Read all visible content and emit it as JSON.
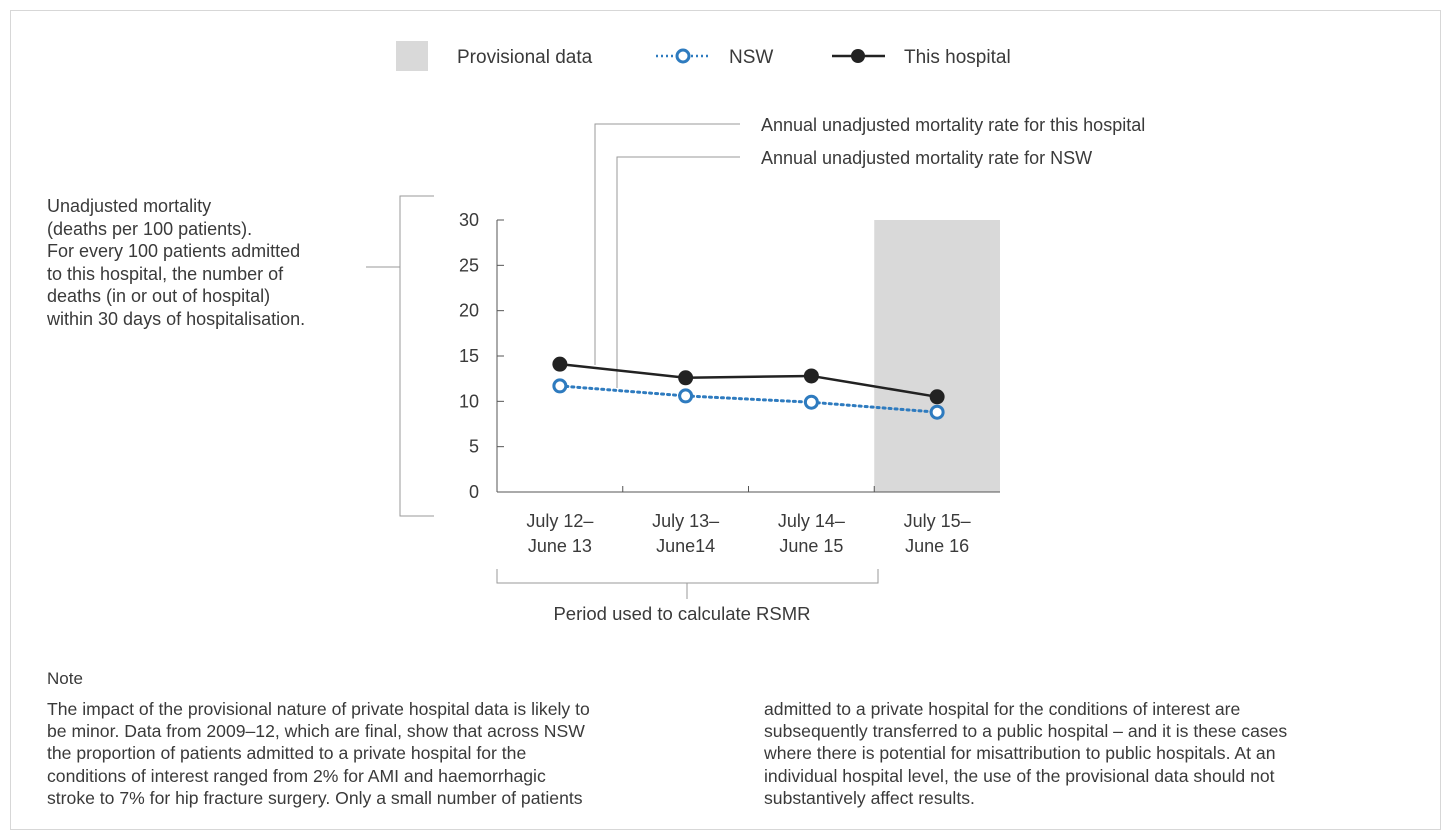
{
  "legend": {
    "provisional_label": "Provisional data",
    "nsw_label": "NSW",
    "hospital_label": "This hospital"
  },
  "annotations": {
    "hospital_rate": "Annual unadjusted mortality rate for this hospital",
    "nsw_rate": "Annual unadjusted mortality rate for NSW",
    "period": "Period used to calculate RSMR"
  },
  "y_axis_description": [
    "Unadjusted mortality",
    "(deaths per 100 patients).",
    "For every 100 patients admitted",
    "to this hospital, the number of",
    "deaths (in or out of hospital)",
    "within 30 days of hospitalisation."
  ],
  "colors": {
    "hospital": "#222222",
    "nsw": "#2e7bbf",
    "provisional_band": "#d9d9d9",
    "axis": "#555555",
    "callout": "#9a9a9a"
  },
  "chart_data": {
    "type": "line",
    "categories": [
      [
        "July 12–",
        "June 13"
      ],
      [
        "July 13–",
        "June14"
      ],
      [
        "July 14–",
        "June 15"
      ],
      [
        "July 15–",
        "June 16"
      ]
    ],
    "series": [
      {
        "name": "This hospital",
        "values": [
          14.1,
          12.6,
          12.8,
          10.5
        ],
        "style": "solid-filled-marker"
      },
      {
        "name": "NSW",
        "values": [
          11.7,
          10.6,
          9.9,
          8.8
        ],
        "style": "dotted-open-marker"
      }
    ],
    "yticks": [
      0,
      5,
      10,
      15,
      20,
      25,
      30
    ],
    "ylim": [
      0,
      30
    ],
    "provisional_categories": [
      3
    ],
    "grid": false,
    "legend_position": "top-center"
  },
  "note": {
    "title": "Note",
    "left_lines": [
      "The impact of the provisional nature of private hospital data is likely to",
      "be minor. Data from 2009–12, which are final, show that across NSW",
      "the proportion of patients admitted to a private hospital for the",
      "conditions of interest ranged from 2% for AMI and haemorrhagic",
      "stroke to 7% for hip fracture surgery. Only a small number of patients"
    ],
    "right_lines": [
      "admitted to a private hospital for the conditions of interest are",
      "subsequently transferred to a public hospital – and it is these cases",
      "where there is potential for misattribution to public hospitals. At an",
      "individual hospital level, the use of the provisional data should not",
      "substantively affect results."
    ]
  }
}
